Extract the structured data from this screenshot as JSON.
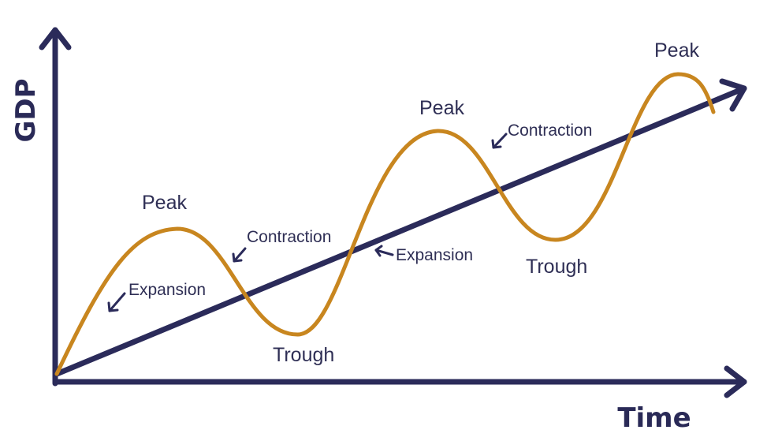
{
  "axes": {
    "y_title": "GDP",
    "x_title": "Time"
  },
  "labels": {
    "peak_1": "Peak",
    "peak_2": "Peak",
    "peak_3": "Peak",
    "trough_1": "Trough",
    "trough_2": "Trough",
    "expansion_1": "Expansion",
    "expansion_2": "Expansion",
    "contraction_1": "Contraction",
    "contraction_2": "Contraction"
  },
  "colors": {
    "axis": "#2b2b5a",
    "trend": "#2b2b5a",
    "cycle": "#c8861f",
    "text": "#2f2f55"
  }
}
